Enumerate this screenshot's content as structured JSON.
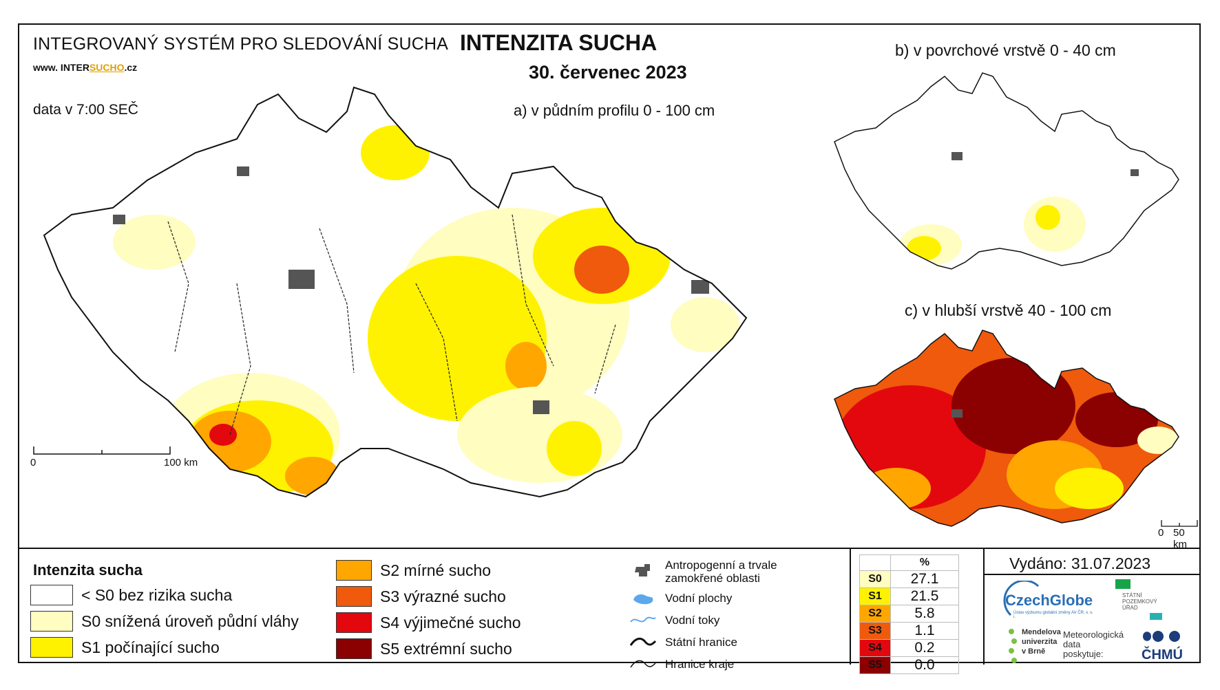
{
  "header": {
    "system_title": "INTEGROVANÝ SYSTÉM PRO SLEDOVÁNÍ SUCHA",
    "url_prefix": "www. INTER",
    "url_underlined": "SUCHO",
    "url_suffix": ".cz",
    "data_time": "data v 7:00 SEČ",
    "title": "INTENZITA SUCHA",
    "date": "30. červenec 2023"
  },
  "maps": {
    "a_label": "a) v půdním profilu 0 - 100 cm",
    "b_label": "b) v povrchové vrstvě 0 - 40 cm",
    "c_label": "c) v hlubší vrstvě 40 - 100 cm",
    "scale_a": {
      "start": "0",
      "end": "100 km"
    },
    "scale_c": {
      "start": "0",
      "end": "50 km"
    }
  },
  "legend": {
    "title": "Intenzita sucha",
    "classes": [
      {
        "label": "< S0 bez rizika sucha",
        "color": "#ffffff"
      },
      {
        "label": "S0 snížená úroveň půdní vláhy",
        "color": "#fffdc0"
      },
      {
        "label": "S1 počínající sucho",
        "color": "#fff200"
      },
      {
        "label": "S2 mírné sucho",
        "color": "#ffa600"
      },
      {
        "label": "S3 výrazné sucho",
        "color": "#ef5a0c"
      },
      {
        "label": "S4 výjimečné sucho",
        "color": "#e3080e"
      },
      {
        "label": "S5 extrémní sucho",
        "color": "#8b0000"
      }
    ],
    "aux": [
      {
        "label": "Antropogenní a trvale\nzamokřené oblasti",
        "icon": "urban-icon"
      },
      {
        "label": "Vodní plochy",
        "icon": "water-body-icon"
      },
      {
        "label": "Vodní toky",
        "icon": "river-icon"
      },
      {
        "label": "Státní hranice",
        "icon": "state-border-icon"
      },
      {
        "label": "Hranice kraje",
        "icon": "region-border-icon"
      }
    ]
  },
  "percent_table": {
    "header": "%",
    "rows": [
      {
        "cls": "S0",
        "value": "27.1",
        "color": "#fffdc0"
      },
      {
        "cls": "S1",
        "value": "21.5",
        "color": "#fff200"
      },
      {
        "cls": "S2",
        "value": "5.8",
        "color": "#ffa600"
      },
      {
        "cls": "S3",
        "value": "1.1",
        "color": "#ef5a0c"
      },
      {
        "cls": "S4",
        "value": "0.2",
        "color": "#e3080e"
      },
      {
        "cls": "S5",
        "value": "0.0",
        "color": "#8b0000"
      }
    ]
  },
  "issued": "Vydáno: 31.07.2023",
  "logos": {
    "czechglobe": "CzechGlobe",
    "czechglobe_sub": "Ústav výzkumu globální změny AV ČR, v. v. i.",
    "spu": "STÁTNÍ\nPOZEMKOVÝ\nÚŘAD",
    "mendel": "Mendelova\nuniverzita\nv Brně",
    "met_data": "Meteorologická\ndata\nposkytuje:",
    "chmu": "ČHMÚ"
  }
}
